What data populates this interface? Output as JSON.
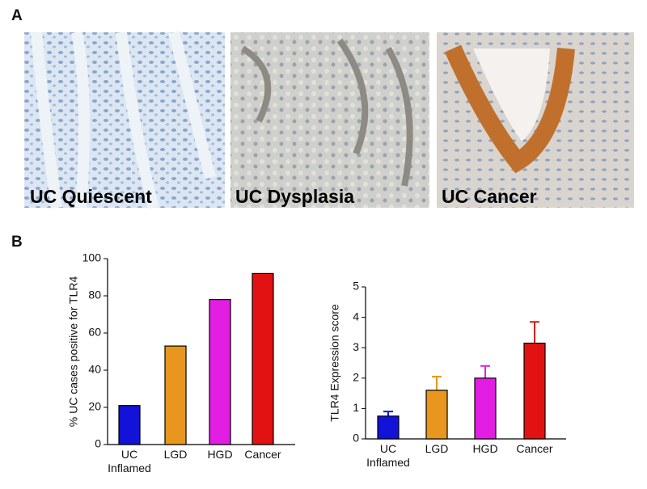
{
  "panel_a": {
    "label": "A",
    "captions": [
      "UC Quiescent",
      "UC Dysplasia",
      "UC Cancer"
    ]
  },
  "panel_b_label": "B",
  "chart_data": [
    {
      "type": "bar",
      "ylabel": "% UC cases positive for TLR4",
      "categories": [
        "UC\nInflamed",
        "LGD",
        "HGD",
        "Cancer"
      ],
      "values": [
        21,
        53,
        78,
        92
      ],
      "colors": [
        "#1212d8",
        "#e8961e",
        "#e21ee2",
        "#e21212"
      ],
      "ylim": [
        0,
        100
      ],
      "yticks": [
        0,
        20,
        40,
        60,
        80,
        100
      ]
    },
    {
      "type": "bar",
      "ylabel": "TLR4 Expression score",
      "categories": [
        "UC\nInflamed",
        "LGD",
        "HGD",
        "Cancer"
      ],
      "values": [
        0.75,
        1.6,
        2.0,
        3.15
      ],
      "errors": [
        0.15,
        0.45,
        0.4,
        0.7
      ],
      "colors": [
        "#1212d8",
        "#e8961e",
        "#e21ee2",
        "#e21212"
      ],
      "ylim": [
        0,
        5
      ],
      "yticks": [
        0,
        1,
        2,
        3,
        4,
        5
      ]
    }
  ]
}
